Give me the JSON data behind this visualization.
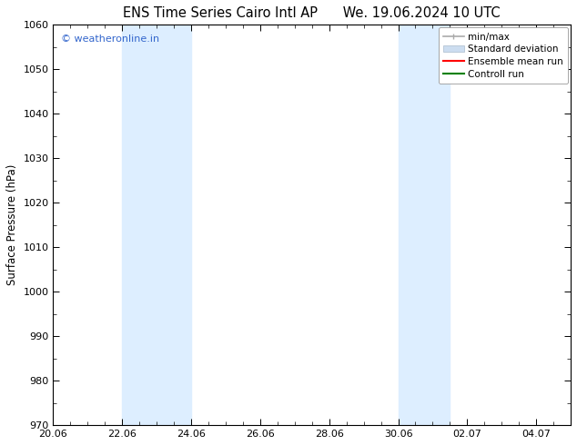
{
  "title_left": "ENS Time Series Cairo Intl AP",
  "title_right": "We. 19.06.2024 10 UTC",
  "ylabel": "Surface Pressure (hPa)",
  "ylim": [
    970,
    1060
  ],
  "yticks": [
    970,
    980,
    990,
    1000,
    1010,
    1020,
    1030,
    1040,
    1050,
    1060
  ],
  "xtick_labels": [
    "20.06",
    "22.06",
    "24.06",
    "26.06",
    "28.06",
    "30.06",
    "02.07",
    "04.07"
  ],
  "xtick_positions": [
    0,
    2,
    4,
    6,
    8,
    10,
    12,
    14
  ],
  "xlim": [
    0,
    15
  ],
  "shade_bands": [
    {
      "x_start": 2,
      "x_end": 4,
      "color": "#ddeeff"
    },
    {
      "x_start": 10,
      "x_end": 11.5,
      "color": "#ddeeff"
    }
  ],
  "watermark_text": "© weatheronline.in",
  "watermark_color": "#3366cc",
  "bg_color": "#ffffff",
  "title_fontsize": 10.5,
  "label_fontsize": 8.5,
  "tick_fontsize": 8,
  "watermark_fontsize": 8,
  "legend_fontsize": 7.5
}
